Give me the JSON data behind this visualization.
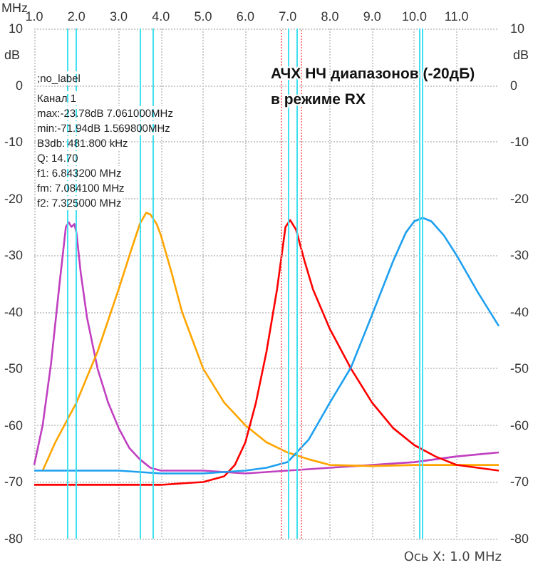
{
  "chart_data": {
    "type": "line",
    "title": "АЧХ НЧ диапазонов (-20дБ)\nв режиме RX",
    "xlabel": "MHz",
    "ylabel": "dB",
    "y2label": "dB",
    "annotations": [
      ";no_label",
      "Канал 1",
      "max:-23.78dB 7.061000MHz",
      "min:-71.94dB 1.569800MHz",
      "B3db: 481.800 kHz",
      "Q: 14.70",
      "f1: 6.843200 MHz",
      "fm: 7.084100 MHz",
      "f2: 7.325000 MHz",
      "Ось X: 1.0 MHz"
    ],
    "xlim": [
      1,
      12
    ],
    "xticks": [
      {
        "value": 1,
        "label": "1.0"
      },
      {
        "value": 2,
        "label": "2.0"
      },
      {
        "value": 3,
        "label": "3.0"
      },
      {
        "value": 4,
        "label": "4.0"
      },
      {
        "value": 5,
        "label": "5.0"
      },
      {
        "value": 6,
        "label": "6.0"
      },
      {
        "value": 7,
        "label": "7.0"
      },
      {
        "value": 8,
        "label": "8.0"
      },
      {
        "value": 9,
        "label": "9.0"
      },
      {
        "value": 10,
        "label": "10.0"
      },
      {
        "value": 11,
        "label": "11.0"
      }
    ],
    "ylim": [
      -80,
      10
    ],
    "yticks": [
      -80,
      -70,
      -60,
      -50,
      -40,
      -30,
      -20,
      -10,
      0,
      10
    ],
    "y2lim": [
      -80,
      10
    ],
    "y2ticks": [
      -80,
      -70,
      -60,
      -50,
      -40,
      -30,
      -20,
      -10,
      0,
      10
    ],
    "grid": true,
    "marker": "none",
    "line_style": "solid",
    "series": [
      {
        "color": "#c040c0",
        "x": [
          1,
          1.2,
          1.4,
          1.6,
          1.75,
          1.82,
          1.88,
          1.95,
          2.0,
          2.1,
          2.25,
          2.5,
          2.75,
          3.0,
          3.25,
          3.5,
          3.75,
          4.0,
          5.0,
          6.0,
          7.0,
          8.0,
          9.0,
          10.0,
          11.0,
          12.0
        ],
        "values": [
          -67,
          -60,
          -49,
          -35,
          -25,
          -24.2,
          -25,
          -24.5,
          -26,
          -33,
          -41,
          -50,
          -56,
          -60.5,
          -64,
          -66,
          -67.5,
          -68,
          -68,
          -68.5,
          -68,
          -67.5,
          -67,
          -66.5,
          -65.5,
          -64.8
        ]
      },
      {
        "color": "#ffa500",
        "x": [
          1.2,
          1.5,
          2.0,
          2.5,
          3.0,
          3.3,
          3.5,
          3.65,
          3.75,
          3.9,
          4.0,
          4.25,
          4.5,
          5.0,
          5.5,
          6.0,
          6.5,
          7.0,
          7.5,
          8.0,
          9.0,
          10.0,
          11.0,
          12.0
        ],
        "values": [
          -68,
          -63,
          -56,
          -47,
          -36,
          -29,
          -24.5,
          -22.5,
          -22.8,
          -24.5,
          -26.5,
          -33,
          -40,
          -50,
          -56,
          -60,
          -63,
          -64.8,
          -66,
          -67,
          -67.2,
          -67,
          -67,
          -67
        ]
      },
      {
        "color": "#ff0000",
        "x": [
          1,
          2,
          3,
          4,
          5,
          5.5,
          5.75,
          6.0,
          6.25,
          6.5,
          6.75,
          6.95,
          7.06,
          7.2,
          7.4,
          7.6,
          8.0,
          8.5,
          9.0,
          9.5,
          10.0,
          10.5,
          11.0,
          12.0
        ],
        "values": [
          -70.5,
          -70.5,
          -70.5,
          -70.5,
          -70,
          -69,
          -67,
          -63,
          -56,
          -47,
          -36,
          -25,
          -23.8,
          -25.5,
          -31,
          -36,
          -43,
          -50,
          -56,
          -60.5,
          -63.5,
          -65.5,
          -67,
          -68
        ]
      },
      {
        "color": "#1ea0f0",
        "x": [
          1,
          2,
          3,
          4,
          5,
          6,
          6.5,
          7.0,
          7.5,
          8.0,
          8.5,
          9.0,
          9.5,
          9.8,
          10.0,
          10.2,
          10.4,
          10.7,
          11.0,
          11.5,
          12.0
        ],
        "values": [
          -68,
          -68,
          -68,
          -68.5,
          -68.5,
          -68,
          -67.5,
          -66.5,
          -62.5,
          -56,
          -49.8,
          -40.5,
          -31,
          -26,
          -24,
          -23.4,
          -24,
          -26.5,
          -30,
          -36.5,
          -42.5
        ]
      }
    ],
    "ref_lines": [
      {
        "axis": "x",
        "value": 1.8,
        "color": "#40e0f0",
        "line_style": "solid"
      },
      {
        "axis": "x",
        "value": 2.0,
        "color": "#40e0f0",
        "line_style": "solid"
      },
      {
        "axis": "x",
        "value": 3.5,
        "color": "#40e0f0",
        "line_style": "solid"
      },
      {
        "axis": "x",
        "value": 3.8,
        "color": "#40e0f0",
        "line_style": "solid"
      },
      {
        "axis": "x",
        "value": 7.02,
        "color": "#40e0f0",
        "line_style": "solid"
      },
      {
        "axis": "x",
        "value": 7.21,
        "color": "#40e0f0",
        "line_style": "solid"
      },
      {
        "axis": "x",
        "value": 10.11,
        "color": "#40e0f0",
        "line_style": "solid"
      },
      {
        "axis": "x",
        "value": 10.17,
        "color": "#40e0f0",
        "line_style": "solid"
      },
      {
        "axis": "x",
        "value": 6.84,
        "color": "#ff8080",
        "line_style": "dotted"
      },
      {
        "axis": "x",
        "value": 7.33,
        "color": "#ff8080",
        "line_style": "dotted"
      }
    ]
  }
}
